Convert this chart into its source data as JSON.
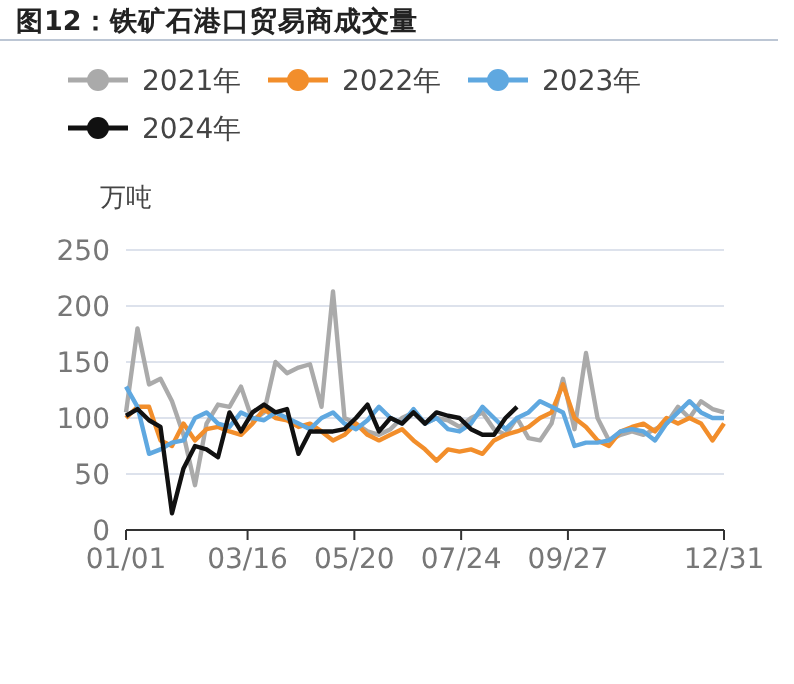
{
  "chart_data": {
    "type": "line",
    "title": "图12：铁矿石港口贸易商成交量",
    "ylabel": "万吨",
    "x": [
      "--01-01",
      "--01-08",
      "--01-15",
      "--01-22",
      "--01-29",
      "--02-05",
      "--02-12",
      "--02-19",
      "--02-26",
      "--03-05",
      "--03-12",
      "--03-19",
      "--03-26",
      "--04-02",
      "--04-09",
      "--04-16",
      "--04-23",
      "--04-30",
      "--05-07",
      "--05-14",
      "--05-21",
      "--05-28",
      "--06-04",
      "--06-11",
      "--06-18",
      "--06-25",
      "--07-02",
      "--07-09",
      "--07-16",
      "--07-23",
      "--07-30",
      "--08-06",
      "--08-13",
      "--08-20",
      "--08-27",
      "--09-03",
      "--09-10",
      "--09-17",
      "--09-24",
      "--10-01",
      "--10-08",
      "--10-15",
      "--10-22",
      "--10-29",
      "--11-05",
      "--11-12",
      "--11-19",
      "--11-26",
      "--12-03",
      "--12-10",
      "--12-17",
      "--12-24",
      "--12-31"
    ],
    "series": [
      {
        "name": "2021年",
        "color": "#aaaaaa",
        "values": [
          105,
          180,
          130,
          135,
          115,
          85,
          40,
          95,
          112,
          110,
          128,
          98,
          105,
          150,
          140,
          145,
          148,
          110,
          213,
          100,
          95,
          88,
          85,
          90,
          100,
          105,
          95,
          100,
          98,
          92,
          100,
          105,
          90,
          85,
          100,
          82,
          80,
          95,
          135,
          90,
          158,
          100,
          80,
          85,
          88,
          85,
          90,
          95,
          110,
          100,
          115,
          108,
          105
        ]
      },
      {
        "name": "2022年",
        "color": "#f28e2b",
        "values": [
          100,
          110,
          110,
          80,
          75,
          95,
          80,
          90,
          92,
          88,
          85,
          95,
          108,
          100,
          98,
          92,
          95,
          88,
          80,
          85,
          95,
          85,
          80,
          85,
          90,
          80,
          72,
          62,
          72,
          70,
          72,
          68,
          80,
          85,
          88,
          92,
          100,
          105,
          130,
          100,
          92,
          80,
          75,
          88,
          92,
          95,
          88,
          100,
          95,
          100,
          95,
          80,
          95
        ]
      },
      {
        "name": "2023年",
        "color": "#5fa8e0",
        "values": [
          128,
          110,
          68,
          72,
          78,
          80,
          100,
          105,
          95,
          92,
          105,
          100,
          98,
          105,
          100,
          95,
          90,
          100,
          105,
          95,
          90,
          98,
          110,
          100,
          95,
          108,
          95,
          100,
          90,
          88,
          95,
          110,
          100,
          90,
          100,
          105,
          115,
          110,
          105,
          75,
          78,
          78,
          80,
          88,
          90,
          88,
          80,
          95,
          105,
          115,
          105,
          100,
          100
        ]
      },
      {
        "name": "2024年",
        "color": "#111111",
        "values": [
          102,
          108,
          98,
          92,
          15,
          55,
          75,
          72,
          65,
          105,
          88,
          105,
          112,
          105,
          108,
          68,
          88,
          88,
          88,
          90,
          100,
          112,
          88,
          100,
          95,
          105,
          95,
          105,
          102,
          100,
          90,
          85,
          85,
          100,
          110,
          null,
          null,
          null,
          null,
          null,
          null,
          null,
          null,
          null,
          null,
          null,
          null,
          null,
          null,
          null,
          null,
          null,
          null
        ]
      }
    ],
    "xlim": [
      "--01-01",
      "--12-31"
    ],
    "xticks": [
      {
        "value": "--01-01",
        "label": "01/01"
      },
      {
        "value": "--03-16",
        "label": "03/16"
      },
      {
        "value": "--05-20",
        "label": "05/20"
      },
      {
        "value": "--07-24",
        "label": "07/24"
      },
      {
        "value": "--09-27",
        "label": "09/27"
      },
      {
        "value": "--12-31",
        "label": "12/31"
      }
    ],
    "ylim": [
      0,
      250
    ],
    "yticks": [
      0,
      50,
      100,
      150,
      200,
      250
    ],
    "grid": "y",
    "legend": "top",
    "marker": "none",
    "line_style": "solid"
  }
}
